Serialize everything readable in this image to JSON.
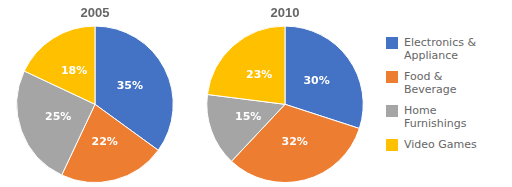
{
  "chart_data": [
    {
      "type": "pie",
      "title": "2005",
      "categories": [
        "Electronics &\nAppliance",
        "Food &\nBeverage",
        "Home\nFurnishings",
        "Video Games"
      ],
      "values": [
        35,
        22,
        25,
        18
      ],
      "value_labels": [
        "35%",
        "22%",
        "25%",
        "18%"
      ],
      "colors": [
        "#4472C4",
        "#ED7D31",
        "#A5A5A5",
        "#FFC000"
      ],
      "data_labels": true
    },
    {
      "type": "pie",
      "title": "2010",
      "categories": [
        "Electronics &\nAppliance",
        "Food &\nBeverage",
        "Home\nFurnishings",
        "Video Games"
      ],
      "values": [
        30,
        32,
        15,
        23
      ],
      "value_labels": [
        "30%",
        "32%",
        "15%",
        "23%"
      ],
      "colors": [
        "#4472C4",
        "#ED7D31",
        "#A5A5A5",
        "#FFC000"
      ],
      "data_labels": true,
      "legend": "right"
    }
  ]
}
